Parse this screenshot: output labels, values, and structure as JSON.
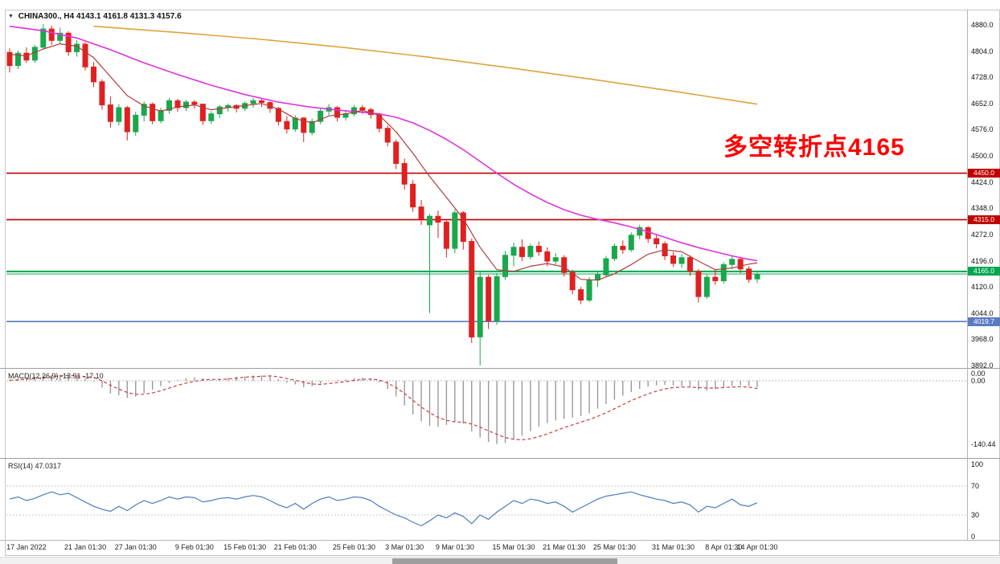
{
  "window": {
    "symbol_title": "CHINA300., H4",
    "ohlc_text": "4143.1 4161.8 4131.3 4157.6"
  },
  "annotation": {
    "text": "多空转折点4165",
    "color": "#FF0000"
  },
  "chart_data": {
    "type": "candlestick",
    "symbol": "CHINA300.",
    "timeframe": "H4",
    "current_ohlc": {
      "open": 4143.1,
      "high": 4161.8,
      "low": 4131.3,
      "close": 4157.6
    },
    "ylim": [
      3892,
      4880
    ],
    "colors": {
      "up": "#19A84C",
      "down": "#E02020"
    },
    "price_axis": {
      "labels": [
        "4880.0",
        "4804.0",
        "4728.0",
        "4652.0",
        "4576.0",
        "4500.0",
        "4424.0",
        "4348.0",
        "4272.0",
        "4196.0",
        "4120.0",
        "4044.0",
        "3968.0",
        "3892.0"
      ]
    },
    "levels": [
      {
        "value": 4450.0,
        "label": "4450.0",
        "color": "#C00000"
      },
      {
        "value": 4315.0,
        "label": "4315.0",
        "color": "#C00000"
      },
      {
        "value": 4165.0,
        "label": "4165.0",
        "color": "#00A651"
      },
      {
        "value": 4019.7,
        "label": "4019.7",
        "color": "#5B7BC0"
      }
    ],
    "bid_line": {
      "value": 4157.6,
      "color": "#00A651"
    },
    "candles": [
      [
        4800,
        4812,
        4742,
        4762
      ],
      [
        4762,
        4806,
        4752,
        4798
      ],
      [
        4798,
        4815,
        4770,
        4778
      ],
      [
        4778,
        4822,
        4770,
        4815
      ],
      [
        4815,
        4882,
        4808,
        4868
      ],
      [
        4868,
        4878,
        4822,
        4835
      ],
      [
        4835,
        4872,
        4825,
        4856
      ],
      [
        4856,
        4862,
        4790,
        4802
      ],
      [
        4802,
        4836,
        4788,
        4824
      ],
      [
        4824,
        4830,
        4748,
        4758
      ],
      [
        4758,
        4772,
        4700,
        4715
      ],
      [
        4715,
        4722,
        4634,
        4648
      ],
      [
        4648,
        4672,
        4582,
        4600
      ],
      [
        4600,
        4650,
        4588,
        4640
      ],
      [
        4640,
        4645,
        4545,
        4570
      ],
      [
        4570,
        4628,
        4558,
        4618
      ],
      [
        4618,
        4658,
        4600,
        4650
      ],
      [
        4650,
        4655,
        4592,
        4602
      ],
      [
        4602,
        4640,
        4595,
        4632
      ],
      [
        4632,
        4668,
        4622,
        4660
      ],
      [
        4660,
        4666,
        4628,
        4640
      ],
      [
        4640,
        4662,
        4630,
        4656
      ],
      [
        4656,
        4662,
        4638,
        4650
      ],
      [
        4650,
        4652,
        4590,
        4602
      ],
      [
        4602,
        4630,
        4592,
        4622
      ],
      [
        4622,
        4648,
        4610,
        4642
      ],
      [
        4642,
        4652,
        4628,
        4646
      ],
      [
        4646,
        4650,
        4626,
        4638
      ],
      [
        4638,
        4658,
        4630,
        4652
      ],
      [
        4652,
        4668,
        4640,
        4660
      ],
      [
        4660,
        4665,
        4642,
        4655
      ],
      [
        4655,
        4658,
        4625,
        4638
      ],
      [
        4638,
        4642,
        4588,
        4600
      ],
      [
        4600,
        4615,
        4565,
        4578
      ],
      [
        4578,
        4618,
        4570,
        4610
      ],
      [
        4610,
        4612,
        4540,
        4568
      ],
      [
        4568,
        4608,
        4560,
        4600
      ],
      [
        4600,
        4638,
        4592,
        4630
      ],
      [
        4630,
        4650,
        4618,
        4640
      ],
      [
        4640,
        4645,
        4600,
        4612
      ],
      [
        4612,
        4632,
        4602,
        4622
      ],
      [
        4622,
        4648,
        4615,
        4640
      ],
      [
        4640,
        4648,
        4622,
        4634
      ],
      [
        4634,
        4640,
        4608,
        4620
      ],
      [
        4620,
        4625,
        4568,
        4580
      ],
      [
        4580,
        4588,
        4528,
        4540
      ],
      [
        4540,
        4548,
        4462,
        4478
      ],
      [
        4478,
        4492,
        4402,
        4418
      ],
      [
        4418,
        4430,
        4338,
        4352
      ],
      [
        4352,
        4372,
        4300,
        4318
      ],
      [
        4300,
        4332,
        4044,
        4325
      ],
      [
        4325,
        4342,
        4262,
        4308
      ],
      [
        4308,
        4315,
        4205,
        4232
      ],
      [
        4232,
        4345,
        4218,
        4335
      ],
      [
        4335,
        4340,
        4228,
        4252
      ],
      [
        4252,
        4260,
        3958,
        3975
      ],
      [
        3975,
        4162,
        3892,
        4148
      ],
      [
        4148,
        4155,
        3998,
        4022
      ],
      [
        4022,
        4160,
        4010,
        4150
      ],
      [
        4150,
        4225,
        4140,
        4212
      ],
      [
        4212,
        4248,
        4180,
        4235
      ],
      [
        4235,
        4258,
        4195,
        4208
      ],
      [
        4208,
        4245,
        4200,
        4238
      ],
      [
        4238,
        4252,
        4210,
        4222
      ],
      [
        4222,
        4235,
        4180,
        4195
      ],
      [
        4195,
        4218,
        4185,
        4205
      ],
      [
        4205,
        4212,
        4150,
        4162
      ],
      [
        4162,
        4170,
        4098,
        4112
      ],
      [
        4112,
        4120,
        4070,
        4082
      ],
      [
        4082,
        4148,
        4076,
        4140
      ],
      [
        4140,
        4162,
        4120,
        4155
      ],
      [
        4155,
        4210,
        4148,
        4202
      ],
      [
        4202,
        4246,
        4195,
        4238
      ],
      [
        4238,
        4255,
        4216,
        4228
      ],
      [
        4228,
        4278,
        4222,
        4270
      ],
      [
        4270,
        4300,
        4258,
        4292
      ],
      [
        4292,
        4296,
        4248,
        4260
      ],
      [
        4260,
        4270,
        4232,
        4245
      ],
      [
        4245,
        4252,
        4198,
        4210
      ],
      [
        4210,
        4222,
        4178,
        4188
      ],
      [
        4188,
        4215,
        4175,
        4205
      ],
      [
        4205,
        4212,
        4152,
        4165
      ],
      [
        4165,
        4172,
        4075,
        4092
      ],
      [
        4092,
        4158,
        4085,
        4148
      ],
      [
        4148,
        4170,
        4126,
        4138
      ],
      [
        4138,
        4192,
        4130,
        4185
      ],
      [
        4185,
        4210,
        4172,
        4200
      ],
      [
        4200,
        4208,
        4160,
        4172
      ],
      [
        4172,
        4180,
        4132,
        4142
      ],
      [
        4143.1,
        4161.8,
        4131.3,
        4157.6
      ]
    ],
    "x_labels": [
      {
        "i": 2,
        "text": "17 Jan 2022"
      },
      {
        "i": 9,
        "text": "21 Jan 01:30"
      },
      {
        "i": 15,
        "text": "27 Jan 01:30"
      },
      {
        "i": 22,
        "text": "9 Feb 01:30"
      },
      {
        "i": 28,
        "text": "15 Feb 01:30"
      },
      {
        "i": 34,
        "text": "21 Feb 01:30"
      },
      {
        "i": 41,
        "text": "25 Feb 01:30"
      },
      {
        "i": 47,
        "text": "3 Mar 01:30"
      },
      {
        "i": 53,
        "text": "9 Mar 01:30"
      },
      {
        "i": 60,
        "text": "15 Mar 01:30"
      },
      {
        "i": 66,
        "text": "21 Mar 01:30"
      },
      {
        "i": 72,
        "text": "25 Mar 01:30"
      },
      {
        "i": 79,
        "text": "31 Mar 01:30"
      },
      {
        "i": 85,
        "text": "8 Apr 01:30"
      },
      {
        "i": 89,
        "text": "14 Apr 01:30"
      }
    ],
    "moving_averages": [
      {
        "name": "ma-slow-orange",
        "color": "#E0A23C",
        "width": 1.6,
        "points": [
          [
            10,
            4876
          ],
          [
            20,
            4858
          ],
          [
            30,
            4838
          ],
          [
            40,
            4814
          ],
          [
            50,
            4786
          ],
          [
            60,
            4754
          ],
          [
            70,
            4720
          ],
          [
            80,
            4684
          ],
          [
            89,
            4650
          ]
        ]
      },
      {
        "name": "ma-mid-magenta",
        "color": "#DD33DD",
        "width": 1.6,
        "points": [
          [
            0,
            4876
          ],
          [
            4,
            4863
          ],
          [
            8,
            4842
          ],
          [
            12,
            4808
          ],
          [
            16,
            4770
          ],
          [
            20,
            4736
          ],
          [
            24,
            4705
          ],
          [
            28,
            4678
          ],
          [
            32,
            4656
          ],
          [
            36,
            4641
          ],
          [
            40,
            4631
          ],
          [
            44,
            4622
          ],
          [
            46,
            4612
          ],
          [
            48,
            4596
          ],
          [
            50,
            4574
          ],
          [
            52,
            4548
          ],
          [
            54,
            4518
          ],
          [
            56,
            4484
          ],
          [
            58,
            4450
          ],
          [
            60,
            4418
          ],
          [
            62,
            4390
          ],
          [
            64,
            4365
          ],
          [
            66,
            4344
          ],
          [
            68,
            4328
          ],
          [
            70,
            4316
          ],
          [
            72,
            4306
          ],
          [
            74,
            4294
          ],
          [
            76,
            4280
          ],
          [
            78,
            4264
          ],
          [
            80,
            4248
          ],
          [
            82,
            4234
          ],
          [
            84,
            4222
          ],
          [
            86,
            4210
          ],
          [
            88,
            4200
          ],
          [
            89,
            4196
          ]
        ]
      },
      {
        "name": "ma-fast-red",
        "color": "#B23B3B",
        "width": 1.2,
        "points": [
          [
            0,
            4795
          ],
          [
            2,
            4790
          ],
          [
            4,
            4810
          ],
          [
            6,
            4825
          ],
          [
            8,
            4818
          ],
          [
            10,
            4785
          ],
          [
            12,
            4730
          ],
          [
            14,
            4675
          ],
          [
            16,
            4645
          ],
          [
            18,
            4630
          ],
          [
            20,
            4642
          ],
          [
            22,
            4648
          ],
          [
            24,
            4634
          ],
          [
            26,
            4640
          ],
          [
            28,
            4646
          ],
          [
            30,
            4652
          ],
          [
            32,
            4636
          ],
          [
            34,
            4608
          ],
          [
            36,
            4596
          ],
          [
            38,
            4616
          ],
          [
            40,
            4622
          ],
          [
            42,
            4632
          ],
          [
            44,
            4618
          ],
          [
            46,
            4570
          ],
          [
            48,
            4508
          ],
          [
            50,
            4440
          ],
          [
            52,
            4380
          ],
          [
            54,
            4318
          ],
          [
            56,
            4235
          ],
          [
            58,
            4170
          ],
          [
            60,
            4165
          ],
          [
            62,
            4180
          ],
          [
            64,
            4188
          ],
          [
            66,
            4178
          ],
          [
            68,
            4142
          ],
          [
            70,
            4140
          ],
          [
            72,
            4158
          ],
          [
            74,
            4185
          ],
          [
            76,
            4215
          ],
          [
            78,
            4228
          ],
          [
            80,
            4222
          ],
          [
            82,
            4195
          ],
          [
            84,
            4170
          ],
          [
            86,
            4175
          ],
          [
            88,
            4186
          ],
          [
            89,
            4190
          ]
        ]
      }
    ],
    "macd": {
      "label": "MACD(12,26,9)",
      "values_text": "-13.91 -17.10",
      "current": {
        "macd": -13.91,
        "signal": -17.1
      },
      "min_shown": -140.44,
      "axis_labels": [
        {
          "text": "0.00",
          "value": 16
        },
        {
          "text": "0.00",
          "value": 0
        },
        {
          "text": "-140.44",
          "value": -140.44
        }
      ],
      "histogram": [
        3,
        5,
        7,
        9,
        12,
        13,
        14,
        12,
        10,
        5,
        -2,
        -15,
        -28,
        -32,
        -38,
        -35,
        -28,
        -20,
        -12,
        -5,
        2,
        6,
        8,
        6,
        2,
        4,
        7,
        9,
        10,
        12,
        12,
        10,
        4,
        -4,
        -8,
        -14,
        -12,
        -6,
        0,
        2,
        3,
        6,
        7,
        5,
        -4,
        -18,
        -35,
        -55,
        -75,
        -90,
        -100,
        -102,
        -98,
        -90,
        -95,
        -112,
        -126,
        -136,
        -140.44,
        -138,
        -130,
        -122,
        -112,
        -102,
        -94,
        -88,
        -84,
        -82,
        -78,
        -72,
        -62,
        -52,
        -42,
        -33,
        -25,
        -18,
        -13,
        -10,
        -9,
        -10,
        -12,
        -14,
        -20,
        -22,
        -18,
        -14,
        -11,
        -10,
        -12,
        -13.91
      ],
      "signal": [
        1,
        2,
        4,
        5,
        7,
        9,
        11,
        12,
        11,
        9,
        8,
        0,
        -10,
        -18,
        -26,
        -30,
        -30,
        -27,
        -22,
        -16,
        -10,
        -5,
        -1,
        2,
        3,
        3,
        4,
        6,
        8,
        9,
        10,
        11,
        9,
        5,
        1,
        -3,
        -7,
        -8,
        -6,
        -4,
        -2,
        1,
        3,
        4,
        2,
        -5,
        -15,
        -28,
        -43,
        -58,
        -71,
        -81,
        -88,
        -91,
        -92,
        -96,
        -103,
        -111,
        -119,
        -126,
        -130,
        -131,
        -129,
        -124,
        -118,
        -111,
        -104,
        -98,
        -92,
        -86,
        -79,
        -71,
        -62,
        -53,
        -44,
        -36,
        -29,
        -23,
        -18,
        -15,
        -14,
        -14,
        -15,
        -16,
        -16,
        -15,
        -14,
        -13,
        -14,
        -17.1
      ]
    },
    "rsi": {
      "label": "RSI(14)",
      "value_text": "47.0317",
      "current": 47.0317,
      "axis_labels": [
        {
          "text": "100",
          "value": 100
        },
        {
          "text": "70",
          "value": 70
        },
        {
          "text": "30",
          "value": 30
        },
        {
          "text": "0",
          "value": 0
        }
      ],
      "guide_levels": [
        70,
        30
      ],
      "values": [
        52,
        55,
        50,
        53,
        58,
        62,
        58,
        60,
        54,
        48,
        42,
        38,
        35,
        42,
        36,
        44,
        50,
        46,
        50,
        55,
        52,
        55,
        54,
        48,
        50,
        53,
        54,
        52,
        55,
        57,
        55,
        50,
        44,
        40,
        46,
        38,
        46,
        52,
        55,
        50,
        52,
        55,
        54,
        50,
        42,
        36,
        30,
        26,
        20,
        15,
        22,
        30,
        26,
        33,
        28,
        18,
        30,
        24,
        34,
        42,
        50,
        46,
        52,
        50,
        46,
        48,
        42,
        34,
        40,
        46,
        52,
        56,
        58,
        60,
        62,
        58,
        55,
        52,
        50,
        46,
        48,
        44,
        34,
        42,
        40,
        46,
        52,
        44,
        42,
        47.03
      ]
    }
  }
}
